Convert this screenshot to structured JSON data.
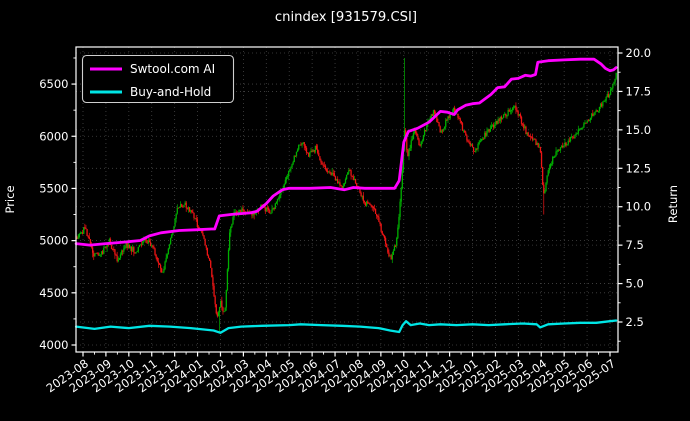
{
  "chart_data": {
    "type": "candlestick+line",
    "title": "cnindex [931579.CSI]",
    "ylabel_left": "Price",
    "ylabel_right": "Return",
    "background": "#000000",
    "text_color": "#ffffff",
    "grid": true,
    "grid_color": "#4d4d4d",
    "legend_position": "upper left",
    "x_tick_labels": [
      "2023-08",
      "2023-09",
      "2023-10",
      "2023-11",
      "2023-12",
      "2024-01",
      "2024-02",
      "2024-03",
      "2024-04",
      "2024-05",
      "2024-06",
      "2024-07",
      "2024-08",
      "2024-09",
      "2024-10",
      "2024-11",
      "2024-12",
      "2025-01",
      "2025-02",
      "2025-03",
      "2025-04",
      "2025-05",
      "2025-06",
      "2025-07"
    ],
    "price_ticks": [
      4000,
      4500,
      5000,
      5500,
      6000,
      6500
    ],
    "return_ticks": [
      2.5,
      5.0,
      7.5,
      10.0,
      12.5,
      15.0,
      17.5,
      20.0
    ],
    "price_axis_range": [
      3933,
      6854
    ],
    "return_axis_range": [
      0.55,
      20.43
    ],
    "colors": {
      "up": "#00b000",
      "down": "#f01515",
      "spine": "#ffffff"
    },
    "series": [
      {
        "name": "Swtool.com AI",
        "color": "#ff00ff",
        "axis": "return",
        "points": [
          [
            -0.3,
            7.6
          ],
          [
            0.3,
            7.5
          ],
          [
            1.0,
            7.6
          ],
          [
            1.8,
            7.7
          ],
          [
            2.5,
            7.8
          ],
          [
            2.9,
            8.1
          ],
          [
            3.4,
            8.3
          ],
          [
            4.2,
            8.45
          ],
          [
            4.9,
            8.5
          ],
          [
            5.6,
            8.55
          ],
          [
            5.75,
            8.55
          ],
          [
            5.95,
            9.4
          ],
          [
            6.5,
            9.5
          ],
          [
            7.3,
            9.6
          ],
          [
            7.6,
            9.7
          ],
          [
            8.0,
            10.2
          ],
          [
            8.3,
            10.7
          ],
          [
            8.7,
            11.1
          ],
          [
            9.0,
            11.2
          ],
          [
            9.9,
            11.2
          ],
          [
            10.8,
            11.25
          ],
          [
            11.4,
            11.1
          ],
          [
            11.8,
            11.25
          ],
          [
            12.3,
            11.2
          ],
          [
            13.0,
            11.2
          ],
          [
            13.6,
            11.2
          ],
          [
            13.8,
            11.7
          ],
          [
            14.0,
            14.2
          ],
          [
            14.2,
            14.9
          ],
          [
            14.6,
            15.1
          ],
          [
            15.1,
            15.5
          ],
          [
            15.6,
            16.2
          ],
          [
            15.9,
            16.15
          ],
          [
            16.2,
            16.0
          ],
          [
            16.35,
            16.3
          ],
          [
            16.7,
            16.6
          ],
          [
            17.0,
            16.7
          ],
          [
            17.3,
            16.75
          ],
          [
            17.8,
            17.3
          ],
          [
            18.1,
            17.75
          ],
          [
            18.4,
            17.8
          ],
          [
            18.7,
            18.3
          ],
          [
            19.0,
            18.35
          ],
          [
            19.3,
            18.55
          ],
          [
            19.55,
            18.5
          ],
          [
            19.75,
            18.6
          ],
          [
            19.85,
            19.4
          ],
          [
            20.3,
            19.5
          ],
          [
            21.0,
            19.55
          ],
          [
            21.7,
            19.6
          ],
          [
            22.3,
            19.6
          ],
          [
            22.6,
            19.3
          ],
          [
            22.8,
            19.0
          ],
          [
            23.0,
            18.85
          ],
          [
            23.15,
            18.9
          ],
          [
            23.27,
            19.05
          ]
        ]
      },
      {
        "name": "Buy-and-Hold",
        "color": "#00e5e5",
        "axis": "return",
        "points": [
          [
            -0.3,
            2.2
          ],
          [
            0.5,
            2.05
          ],
          [
            1.2,
            2.2
          ],
          [
            2.0,
            2.1
          ],
          [
            2.9,
            2.25
          ],
          [
            3.8,
            2.2
          ],
          [
            4.7,
            2.1
          ],
          [
            5.7,
            1.95
          ],
          [
            6.0,
            1.8
          ],
          [
            6.35,
            2.1
          ],
          [
            6.9,
            2.2
          ],
          [
            7.8,
            2.25
          ],
          [
            9.0,
            2.3
          ],
          [
            9.5,
            2.35
          ],
          [
            10.4,
            2.3
          ],
          [
            11.3,
            2.25
          ],
          [
            12.1,
            2.2
          ],
          [
            12.9,
            2.1
          ],
          [
            13.4,
            1.95
          ],
          [
            13.8,
            1.85
          ],
          [
            13.95,
            2.3
          ],
          [
            14.1,
            2.55
          ],
          [
            14.3,
            2.3
          ],
          [
            14.7,
            2.4
          ],
          [
            15.1,
            2.3
          ],
          [
            15.6,
            2.35
          ],
          [
            16.3,
            2.3
          ],
          [
            17.0,
            2.35
          ],
          [
            17.7,
            2.3
          ],
          [
            18.4,
            2.35
          ],
          [
            19.2,
            2.4
          ],
          [
            19.8,
            2.35
          ],
          [
            19.95,
            2.15
          ],
          [
            20.3,
            2.35
          ],
          [
            21.0,
            2.4
          ],
          [
            21.7,
            2.45
          ],
          [
            22.4,
            2.45
          ],
          [
            23.0,
            2.55
          ],
          [
            23.27,
            2.6
          ]
        ]
      }
    ],
    "candles": {
      "count": 485,
      "t_start": -0.26,
      "t_end": 23.27,
      "volatility": 26,
      "wick": 26,
      "seed": 13,
      "close_anchors": [
        [
          -0.26,
          5030
        ],
        [
          0.1,
          5120
        ],
        [
          0.45,
          4860
        ],
        [
          0.8,
          4870
        ],
        [
          1.15,
          4990
        ],
        [
          1.5,
          4820
        ],
        [
          1.9,
          4960
        ],
        [
          2.3,
          4890
        ],
        [
          2.7,
          5010
        ],
        [
          3.05,
          4940
        ],
        [
          3.45,
          4680
        ],
        [
          3.8,
          4990
        ],
        [
          4.15,
          5330
        ],
        [
          4.45,
          5340
        ],
        [
          4.8,
          5240
        ],
        [
          5.2,
          5060
        ],
        [
          5.55,
          4780
        ],
        [
          5.85,
          4230
        ],
        [
          6.0,
          4420
        ],
        [
          6.18,
          4280
        ],
        [
          6.4,
          5060
        ],
        [
          6.6,
          5270
        ],
        [
          7.0,
          5290
        ],
        [
          7.4,
          5260
        ],
        [
          7.8,
          5330
        ],
        [
          8.2,
          5260
        ],
        [
          8.6,
          5430
        ],
        [
          9.0,
          5660
        ],
        [
          9.35,
          5870
        ],
        [
          9.6,
          5950
        ],
        [
          9.85,
          5810
        ],
        [
          10.15,
          5890
        ],
        [
          10.5,
          5710
        ],
        [
          10.9,
          5630
        ],
        [
          11.3,
          5520
        ],
        [
          11.6,
          5670
        ],
        [
          11.9,
          5560
        ],
        [
          12.3,
          5360
        ],
        [
          12.7,
          5310
        ],
        [
          13.1,
          5060
        ],
        [
          13.45,
          4800
        ],
        [
          13.7,
          5020
        ],
        [
          13.9,
          5520
        ],
        [
          14.03,
          6050
        ],
        [
          14.18,
          5800
        ],
        [
          14.45,
          6060
        ],
        [
          14.7,
          5890
        ],
        [
          15.0,
          6110
        ],
        [
          15.3,
          6230
        ],
        [
          15.6,
          6040
        ],
        [
          15.9,
          6160
        ],
        [
          16.2,
          6260
        ],
        [
          16.5,
          6110
        ],
        [
          16.8,
          5960
        ],
        [
          17.1,
          5840
        ],
        [
          17.45,
          5990
        ],
        [
          17.75,
          6060
        ],
        [
          18.1,
          6140
        ],
        [
          18.45,
          6210
        ],
        [
          18.8,
          6290
        ],
        [
          19.1,
          6160
        ],
        [
          19.4,
          6010
        ],
        [
          19.7,
          5960
        ],
        [
          19.95,
          5890
        ],
        [
          20.1,
          5420
        ],
        [
          20.28,
          5660
        ],
        [
          20.55,
          5810
        ],
        [
          20.85,
          5890
        ],
        [
          21.15,
          5950
        ],
        [
          21.45,
          6010
        ],
        [
          21.75,
          6090
        ],
        [
          22.05,
          6160
        ],
        [
          22.35,
          6230
        ],
        [
          22.65,
          6310
        ],
        [
          22.95,
          6400
        ],
        [
          23.15,
          6500
        ],
        [
          23.27,
          6610
        ]
      ],
      "spikes": [
        {
          "t": 5.95,
          "low": 4110
        },
        {
          "t": 14.03,
          "high": 6750
        },
        {
          "t": 20.1,
          "low": 5250
        }
      ]
    }
  }
}
